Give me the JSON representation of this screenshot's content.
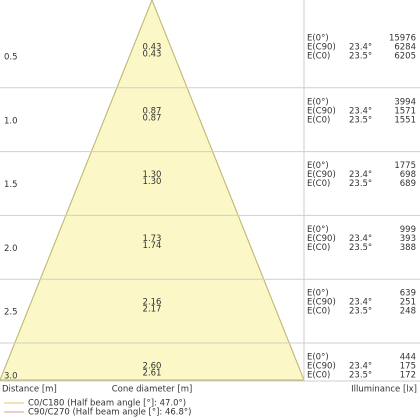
{
  "rows": [
    {
      "distance": "0.5",
      "diameters": [
        "0.43",
        "0.43"
      ],
      "values": [
        "15976",
        "6284",
        "6205"
      ]
    },
    {
      "distance": "1.0",
      "diameters": [
        "0.87",
        "0.87"
      ],
      "values": [
        "3994",
        "1571",
        "1551"
      ]
    },
    {
      "distance": "1.5",
      "diameters": [
        "1.30",
        "1.30"
      ],
      "values": [
        "1775",
        "698",
        "689"
      ]
    },
    {
      "distance": "2.0",
      "diameters": [
        "1.73",
        "1.74"
      ],
      "values": [
        "999",
        "393",
        "388"
      ]
    },
    {
      "distance": "2.5",
      "diameters": [
        "2.16",
        "2.17"
      ],
      "values": [
        "639",
        "251",
        "248"
      ]
    },
    {
      "distance": "3.0",
      "diameters": [
        "2.60",
        "2.61"
      ],
      "values": [
        "444",
        "175",
        "172"
      ]
    }
  ],
  "illuminance_labels": [
    "E(0°)",
    "E(C90)",
    "E(C0)"
  ],
  "angles": [
    "23.4°",
    "23.5°"
  ],
  "footer": {
    "distance": "Distance [m]",
    "diameter": "Cone diameter [m]",
    "illuminance": "Illuminance [lx]"
  },
  "legend": [
    "C0/C180 (Half beam angle [°]: 47.0°)",
    "C90/C270 (Half beam angle [°]: 46.8°)"
  ]
}
